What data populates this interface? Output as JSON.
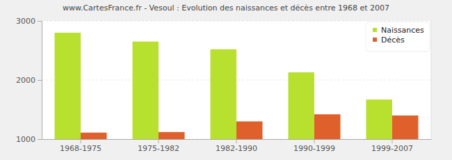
{
  "chart_data": {
    "type": "bar",
    "title": "www.CartesFrance.fr - Vesoul : Evolution des naissances et décès entre 1968 et 2007",
    "categories": [
      "1968-1975",
      "1975-1982",
      "1982-1990",
      "1990-1999",
      "1999-2007"
    ],
    "series": [
      {
        "name": "Naissances",
        "color": "#b8e02e",
        "values": [
          2800,
          2650,
          2520,
          2130,
          1670
        ]
      },
      {
        "name": "Décès",
        "color": "#e0602b",
        "values": [
          1110,
          1120,
          1300,
          1420,
          1400
        ]
      }
    ],
    "ylim": [
      1000,
      3000
    ],
    "yticks": [
      1000,
      2000,
      3000
    ],
    "grid": true,
    "legend": "top-right"
  }
}
